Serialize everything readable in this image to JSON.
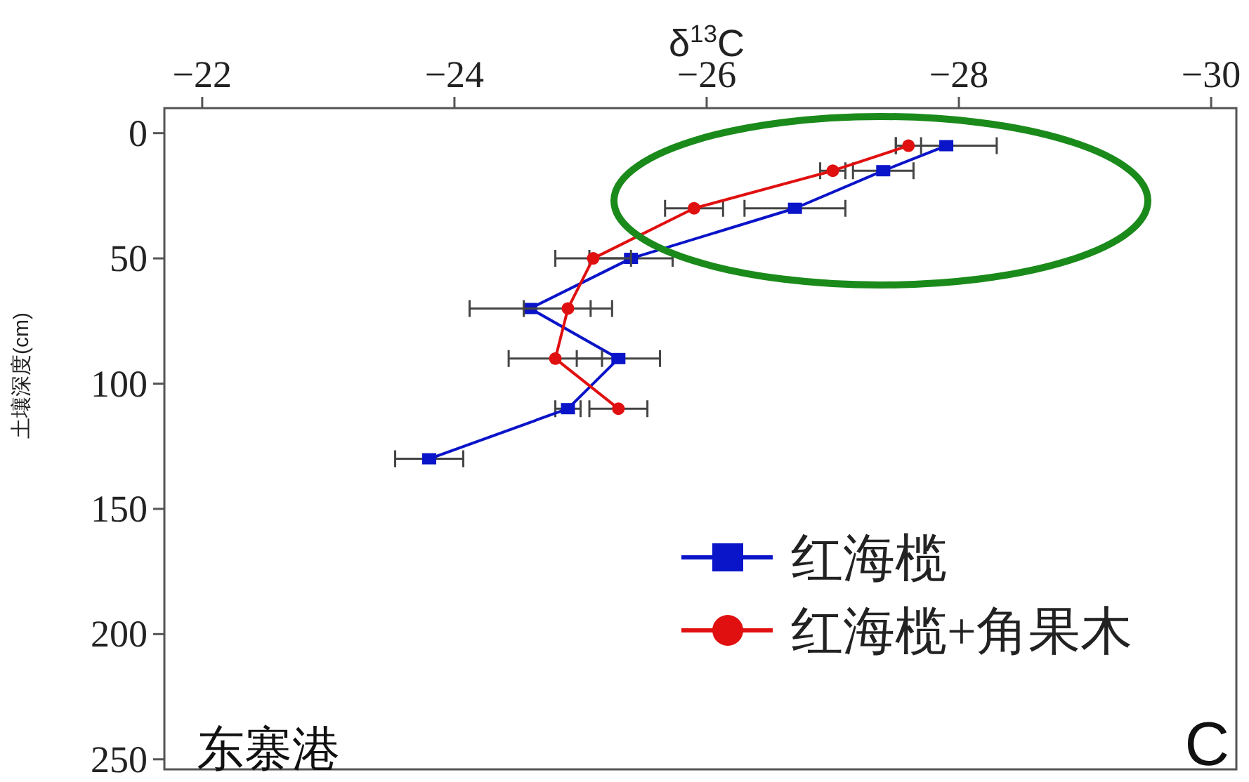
{
  "chart_data": {
    "type": "line",
    "xlabel": "δ$^{13}$C",
    "ylabel": "土壤深度(cm)",
    "xlim": [
      -21.7,
      -30.2
    ],
    "xticks": [
      {
        "value": -22,
        "label": "−22"
      },
      {
        "value": -24,
        "label": "−24"
      },
      {
        "value": -26,
        "label": "−26"
      },
      {
        "value": -28,
        "label": "−28"
      },
      {
        "value": -30,
        "label": "−30"
      }
    ],
    "ylim": [
      254,
      -10
    ],
    "yticks": [
      0,
      50,
      100,
      150,
      200,
      250
    ],
    "grid": false,
    "legend": "bottom right",
    "line_style": "solid",
    "series": [
      {
        "name": "红海榄",
        "color": "#0a14c8",
        "marker": "square",
        "x": [
          -27.9,
          -27.4,
          -26.7,
          -25.4,
          -24.6,
          -25.3,
          -24.9,
          -23.8
        ],
        "values": [
          5,
          15,
          30,
          50,
          70,
          90,
          110,
          130
        ],
        "xerrors": [
          0.4,
          0.24,
          0.4,
          0.33,
          0.48,
          0.33,
          0.1,
          0.27
        ]
      },
      {
        "name": "红海榄+角果木",
        "color": "#e01010",
        "marker": "circle",
        "x": [
          -27.6,
          -27.0,
          -25.9,
          -25.1,
          -24.9,
          -24.8,
          -25.3
        ],
        "values": [
          5,
          15,
          30,
          50,
          70,
          90,
          110
        ],
        "xerrors": [
          0.1,
          0.1,
          0.23,
          0.3,
          0.35,
          0.37,
          0.23
        ]
      }
    ],
    "annotations": [
      "东寨港",
      "C"
    ]
  }
}
